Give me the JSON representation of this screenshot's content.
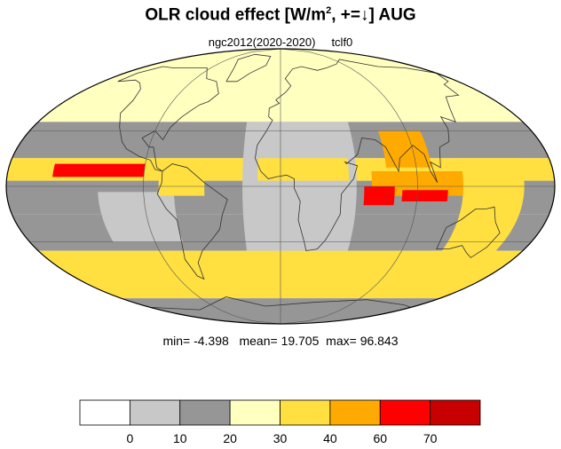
{
  "title": {
    "main": "OLR cloud effect [W/m",
    "sup": "2",
    "rest": ", +=↓]  AUG"
  },
  "subtitle": {
    "experiment": "ngc2012(2020-2020)",
    "variable": "tclf0"
  },
  "stats": {
    "min_label": "min=",
    "min": "-4.398",
    "mean_label": "mean=",
    "mean": "19.705",
    "max_label": "max=",
    "max": "96.843"
  },
  "chart_data": {
    "type": "heatmap",
    "projection": "mollweide",
    "quantity": "OLR cloud effect",
    "units": "W/m2",
    "month": "AUG",
    "grid": true,
    "colorbar": {
      "orientation": "horizontal",
      "placement": "bottom",
      "levels": [
        0,
        10,
        20,
        30,
        40,
        60,
        70
      ],
      "tick_labels": [
        "0",
        "10",
        "20",
        "30",
        "40",
        "60",
        "70"
      ],
      "colors": [
        "#ffffff",
        "#c8c8c8",
        "#969696",
        "#ffffc0",
        "#ffe040",
        "#ffaa00",
        "#ff0000",
        "#c80000"
      ]
    },
    "summary": {
      "min": -4.398,
      "mean": 19.705,
      "max": 96.843
    },
    "regions": [
      {
        "lon": [
          -180,
          180
        ],
        "lat": [
          55,
          90
        ],
        "value": 25
      },
      {
        "lon": [
          -180,
          180
        ],
        "lat": [
          35,
          55
        ],
        "value": 22
      },
      {
        "lon": [
          -180,
          180
        ],
        "lat": [
          15,
          35
        ],
        "value": 15
      },
      {
        "lon": [
          -180,
          180
        ],
        "lat": [
          3,
          15
        ],
        "value": 33
      },
      {
        "lon": [
          -180,
          180
        ],
        "lat": [
          -15,
          3
        ],
        "value": 12
      },
      {
        "lon": [
          -180,
          180
        ],
        "lat": [
          -35,
          -15
        ],
        "value": 17
      },
      {
        "lon": [
          -180,
          180
        ],
        "lat": [
          -65,
          -35
        ],
        "value": 32
      },
      {
        "lon": [
          -180,
          180
        ],
        "lat": [
          -90,
          -65
        ],
        "value": 18
      },
      {
        "lon": [
          -25,
          50
        ],
        "lat": [
          -35,
          35
        ],
        "value": 8
      },
      {
        "lon": [
          -120,
          -70
        ],
        "lat": [
          -30,
          -3
        ],
        "value": 5
      },
      {
        "lon": [
          -15,
          45
        ],
        "lat": [
          3,
          15
        ],
        "value": 38
      },
      {
        "lon": [
          60,
          150
        ],
        "lat": [
          -5,
          8
        ],
        "value": 45
      },
      {
        "lon": [
          70,
          100
        ],
        "lat": [
          10,
          30
        ],
        "value": 50
      },
      {
        "lon": [
          55,
          75
        ],
        "lat": [
          -10,
          0
        ],
        "value": 65
      },
      {
        "lon": [
          80,
          110
        ],
        "lat": [
          -8,
          -2
        ],
        "value": 62
      },
      {
        "lon": [
          -150,
          -90
        ],
        "lat": [
          5,
          12
        ],
        "value": 65
      },
      {
        "lon": [
          -80,
          -50
        ],
        "lat": [
          -5,
          10
        ],
        "value": 38
      },
      {
        "lon": [
          120,
          160
        ],
        "lat": [
          -35,
          15
        ],
        "value": 30
      }
    ]
  }
}
